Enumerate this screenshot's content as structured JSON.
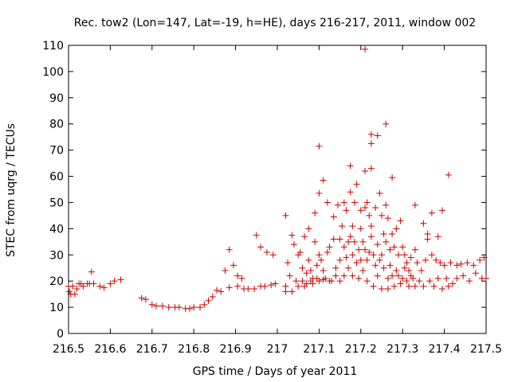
{
  "chart_data": {
    "type": "scatter",
    "title": "Rec. tow2 (Lon=147, Lat=-19, h=HE), days 216-217, 2011, window 002",
    "xlabel": "GPS time / Days of year 2011",
    "ylabel": "STEC from uqrg / TECUs",
    "xlim": [
      216.5,
      217.5
    ],
    "ylim": [
      0,
      110
    ],
    "xticks": [
      216.5,
      216.6,
      216.7,
      216.8,
      216.9,
      217,
      217.1,
      217.2,
      217.3,
      217.4,
      217.5
    ],
    "xtick_labels": [
      "216.5",
      "216.6",
      "216.7",
      "216.8",
      "216.9",
      "217",
      "217.1",
      "217.2",
      "217.3",
      "217.4",
      "217.5"
    ],
    "yticks": [
      0,
      10,
      20,
      30,
      40,
      50,
      60,
      70,
      80,
      90,
      100,
      110
    ],
    "ytick_labels": [
      "0",
      "10",
      "20",
      "30",
      "40",
      "50",
      "60",
      "70",
      "80",
      "90",
      "100",
      "110"
    ],
    "grid": false,
    "marker": "plus",
    "color": "#cc0000",
    "points": [
      [
        216.5,
        18
      ],
      [
        216.502,
        16
      ],
      [
        216.505,
        15
      ],
      [
        216.51,
        18
      ],
      [
        216.515,
        15
      ],
      [
        216.52,
        17
      ],
      [
        216.525,
        19
      ],
      [
        216.53,
        19
      ],
      [
        216.535,
        18
      ],
      [
        216.545,
        19
      ],
      [
        216.55,
        19
      ],
      [
        216.555,
        23.5
      ],
      [
        216.56,
        19
      ],
      [
        216.575,
        18
      ],
      [
        216.585,
        17.5
      ],
      [
        216.6,
        19
      ],
      [
        216.61,
        20
      ],
      [
        216.625,
        20.5
      ],
      [
        216.675,
        13.5
      ],
      [
        216.685,
        13
      ],
      [
        216.7,
        11
      ],
      [
        216.71,
        10.5
      ],
      [
        216.725,
        10.5
      ],
      [
        216.74,
        10
      ],
      [
        216.755,
        10
      ],
      [
        216.765,
        10
      ],
      [
        216.78,
        9.5
      ],
      [
        216.79,
        9.5
      ],
      [
        216.8,
        10
      ],
      [
        216.815,
        10
      ],
      [
        216.825,
        11
      ],
      [
        216.835,
        12.5
      ],
      [
        216.845,
        14
      ],
      [
        216.855,
        16.5
      ],
      [
        216.865,
        16
      ],
      [
        216.875,
        24
      ],
      [
        216.885,
        32
      ],
      [
        216.885,
        17.5
      ],
      [
        216.895,
        26
      ],
      [
        216.905,
        22
      ],
      [
        216.905,
        18
      ],
      [
        216.915,
        21
      ],
      [
        216.92,
        17
      ],
      [
        216.93,
        17
      ],
      [
        216.945,
        17
      ],
      [
        216.95,
        37.5
      ],
      [
        216.96,
        33
      ],
      [
        216.96,
        18
      ],
      [
        216.97,
        18
      ],
      [
        216.975,
        31
      ],
      [
        216.985,
        18.5
      ],
      [
        216.99,
        30
      ],
      [
        216.995,
        19
      ],
      [
        217.02,
        45
      ],
      [
        217.02,
        18
      ],
      [
        217.02,
        16
      ],
      [
        217.025,
        27
      ],
      [
        217.03,
        22
      ],
      [
        217.035,
        37.5
      ],
      [
        217.035,
        16
      ],
      [
        217.04,
        34
      ],
      [
        217.045,
        20
      ],
      [
        217.05,
        30
      ],
      [
        217.05,
        18
      ],
      [
        217.055,
        31
      ],
      [
        217.06,
        25
      ],
      [
        217.06,
        20
      ],
      [
        217.065,
        37
      ],
      [
        217.065,
        18
      ],
      [
        217.07,
        23
      ],
      [
        217.07,
        19
      ],
      [
        217.075,
        40
      ],
      [
        217.075,
        28
      ],
      [
        217.08,
        24
      ],
      [
        217.08,
        20
      ],
      [
        217.085,
        21
      ],
      [
        217.085,
        19
      ],
      [
        217.09,
        46
      ],
      [
        217.09,
        35
      ],
      [
        217.095,
        26
      ],
      [
        217.095,
        21
      ],
      [
        217.1,
        71.5
      ],
      [
        217.1,
        53.5
      ],
      [
        217.1,
        30
      ],
      [
        217.1,
        20
      ],
      [
        217.105,
        28
      ],
      [
        217.11,
        58.5
      ],
      [
        217.11,
        24
      ],
      [
        217.11,
        20.5
      ],
      [
        217.115,
        21
      ],
      [
        217.12,
        50
      ],
      [
        217.12,
        31
      ],
      [
        217.125,
        33
      ],
      [
        217.125,
        20
      ],
      [
        217.13,
        20
      ],
      [
        217.135,
        44.5
      ],
      [
        217.135,
        36
      ],
      [
        217.14,
        25
      ],
      [
        217.14,
        22
      ],
      [
        217.145,
        49
      ],
      [
        217.15,
        36
      ],
      [
        217.15,
        28
      ],
      [
        217.15,
        20
      ],
      [
        217.155,
        41
      ],
      [
        217.16,
        50
      ],
      [
        217.16,
        33
      ],
      [
        217.16,
        22
      ],
      [
        217.165,
        47
      ],
      [
        217.165,
        29
      ],
      [
        217.17,
        35
      ],
      [
        217.17,
        25
      ],
      [
        217.175,
        64
      ],
      [
        217.175,
        54
      ],
      [
        217.175,
        37
      ],
      [
        217.18,
        41
      ],
      [
        217.18,
        30
      ],
      [
        217.18,
        22
      ],
      [
        217.185,
        50
      ],
      [
        217.185,
        35
      ],
      [
        217.19,
        57
      ],
      [
        217.19,
        27
      ],
      [
        217.195,
        32
      ],
      [
        217.195,
        21
      ],
      [
        217.2,
        47
      ],
      [
        217.2,
        40
      ],
      [
        217.2,
        28
      ],
      [
        217.205,
        35
      ],
      [
        217.205,
        24
      ],
      [
        217.21,
        108.5
      ],
      [
        217.21,
        62
      ],
      [
        217.21,
        48
      ],
      [
        217.21,
        32
      ],
      [
        217.215,
        50
      ],
      [
        217.215,
        28
      ],
      [
        217.215,
        20
      ],
      [
        217.22,
        45
      ],
      [
        217.22,
        31
      ],
      [
        217.225,
        76
      ],
      [
        217.225,
        72.5
      ],
      [
        217.225,
        63
      ],
      [
        217.225,
        41
      ],
      [
        217.225,
        37
      ],
      [
        217.23,
        30
      ],
      [
        217.23,
        18
      ],
      [
        217.235,
        48
      ],
      [
        217.235,
        26
      ],
      [
        217.24,
        75.5
      ],
      [
        217.24,
        34
      ],
      [
        217.24,
        22
      ],
      [
        217.245,
        53.5
      ],
      [
        217.245,
        28
      ],
      [
        217.25,
        45
      ],
      [
        217.25,
        30
      ],
      [
        217.25,
        17
      ],
      [
        217.255,
        38
      ],
      [
        217.255,
        25
      ],
      [
        217.26,
        80
      ],
      [
        217.26,
        49
      ],
      [
        217.26,
        35
      ],
      [
        217.265,
        44
      ],
      [
        217.265,
        21
      ],
      [
        217.265,
        17
      ],
      [
        217.27,
        32
      ],
      [
        217.27,
        26
      ],
      [
        217.275,
        59.5
      ],
      [
        217.275,
        38
      ],
      [
        217.275,
        22
      ],
      [
        217.28,
        33
      ],
      [
        217.28,
        18
      ],
      [
        217.285,
        40
      ],
      [
        217.285,
        24
      ],
      [
        217.29,
        30
      ],
      [
        217.29,
        22
      ],
      [
        217.295,
        43
      ],
      [
        217.295,
        19
      ],
      [
        217.3,
        33
      ],
      [
        217.3,
        21
      ],
      [
        217.305,
        30
      ],
      [
        217.305,
        25
      ],
      [
        217.31,
        27
      ],
      [
        217.31,
        20
      ],
      [
        217.315,
        24
      ],
      [
        217.315,
        18
      ],
      [
        217.32,
        29
      ],
      [
        217.32,
        22
      ],
      [
        217.325,
        21
      ],
      [
        217.33,
        49
      ],
      [
        217.33,
        32
      ],
      [
        217.33,
        18
      ],
      [
        217.335,
        27
      ],
      [
        217.34,
        20
      ],
      [
        217.345,
        24
      ],
      [
        217.35,
        42
      ],
      [
        217.35,
        18
      ],
      [
        217.355,
        28
      ],
      [
        217.36,
        38
      ],
      [
        217.36,
        36
      ],
      [
        217.365,
        20
      ],
      [
        217.37,
        46
      ],
      [
        217.37,
        30
      ],
      [
        217.375,
        18
      ],
      [
        217.38,
        28
      ],
      [
        217.385,
        37
      ],
      [
        217.385,
        21
      ],
      [
        217.39,
        27
      ],
      [
        217.395,
        47
      ],
      [
        217.395,
        17
      ],
      [
        217.4,
        26
      ],
      [
        217.405,
        21
      ],
      [
        217.41,
        60.5
      ],
      [
        217.41,
        18
      ],
      [
        217.415,
        27
      ],
      [
        217.42,
        19
      ],
      [
        217.43,
        26
      ],
      [
        217.43,
        21
      ],
      [
        217.44,
        26.5
      ],
      [
        217.445,
        22
      ],
      [
        217.455,
        27
      ],
      [
        217.46,
        20
      ],
      [
        217.47,
        26
      ],
      [
        217.475,
        23
      ],
      [
        217.485,
        28
      ],
      [
        217.49,
        21
      ],
      [
        217.495,
        29
      ],
      [
        217.5,
        21
      ]
    ]
  }
}
